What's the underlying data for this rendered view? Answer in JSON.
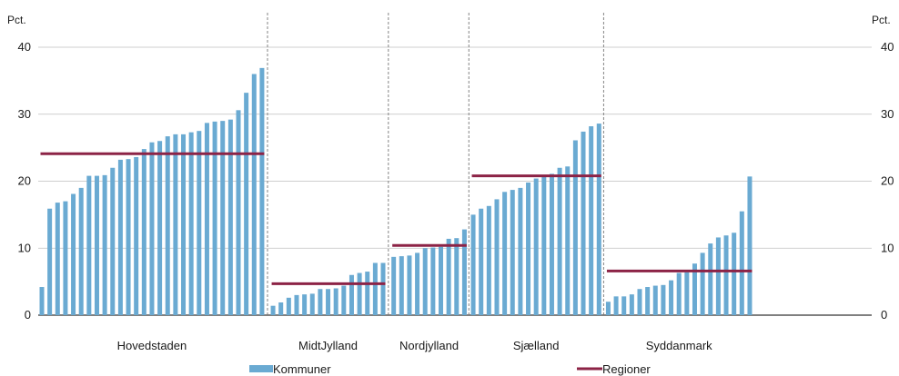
{
  "chart_data": {
    "type": "bar",
    "units": {
      "left": "Pct.",
      "right": "Pct."
    },
    "ylim": [
      0,
      40
    ],
    "yticks": [
      "0",
      "10",
      "20",
      "30",
      "40"
    ],
    "grid": true,
    "legend_placement": "bottom",
    "legend": {
      "bars": "Kommuner",
      "line": "Regioner"
    },
    "colors": {
      "bars": "#6aaad2",
      "line": "#8c2346",
      "grid": "#bfbfbf",
      "divider": "#777777"
    },
    "regions": [
      {
        "name": "Hovedstaden",
        "regional_value": 24.1,
        "values": [
          4.2,
          15.9,
          16.8,
          17.0,
          18.1,
          19.0,
          20.8,
          20.8,
          20.9,
          22.0,
          23.2,
          23.3,
          23.6,
          24.8,
          25.8,
          26.0,
          26.7,
          27.0,
          27.0,
          27.3,
          27.5,
          28.7,
          28.9,
          29.0,
          29.2,
          30.6,
          33.2,
          36.0,
          36.9
        ]
      },
      {
        "name": "MidtJylland",
        "regional_value": 4.7,
        "values": [
          1.4,
          1.9,
          2.6,
          3.0,
          3.1,
          3.2,
          3.9,
          3.9,
          4.0,
          4.4,
          6.0,
          6.3,
          6.5,
          7.8,
          7.8
        ]
      },
      {
        "name": "Nordjylland",
        "regional_value": 10.4,
        "values": [
          8.7,
          8.8,
          8.9,
          9.3,
          10.0,
          10.1,
          10.2,
          11.4,
          11.5,
          12.8
        ]
      },
      {
        "name": "Sjælland",
        "regional_value": 20.8,
        "values": [
          15.0,
          15.9,
          16.3,
          17.3,
          18.4,
          18.7,
          19.0,
          19.8,
          20.4,
          20.7,
          21.1,
          22.0,
          22.2,
          26.1,
          27.4,
          28.2,
          28.6
        ]
      },
      {
        "name": "Syddanmark",
        "regional_value": 6.6,
        "values": [
          2.0,
          2.8,
          2.8,
          3.1,
          3.9,
          4.2,
          4.4,
          4.5,
          5.2,
          6.3,
          6.4,
          7.7,
          9.3,
          10.7,
          11.6,
          11.9,
          12.3,
          15.5,
          20.7
        ]
      }
    ]
  }
}
